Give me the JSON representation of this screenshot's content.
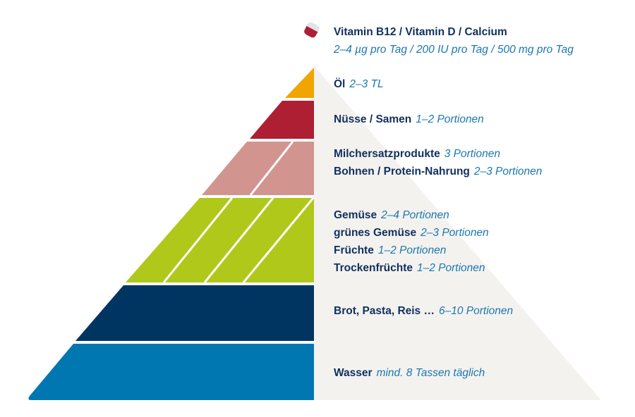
{
  "colors": {
    "background_half": "#f4f2ef",
    "oil": "#f0a500",
    "nuts": "#ae1f34",
    "protein": "#d2948f",
    "produce": "#b0c81a",
    "grains": "#003562",
    "water": "#0077b0",
    "text_dark": "#10305e",
    "text_accent": "#1a78b0"
  },
  "supplement": {
    "icon": "capsule-icon",
    "title": "Vitamin B12 / Vitamin D / Calcium",
    "amount": "2–4 µg pro Tag / 200 IU pro Tag / 500 mg pro Tag"
  },
  "levels": [
    {
      "id": "oil",
      "items": [
        {
          "name": "Öl",
          "amount": "2–3 TL"
        }
      ]
    },
    {
      "id": "nuts",
      "items": [
        {
          "name": "Nüsse / Samen",
          "amount": "1–2 Portionen"
        }
      ]
    },
    {
      "id": "protein",
      "items": [
        {
          "name": "Milchersatzprodukte",
          "amount": "3 Portionen"
        },
        {
          "name": "Bohnen / Protein-Nahrung",
          "amount": "2–3 Portionen"
        }
      ]
    },
    {
      "id": "produce",
      "items": [
        {
          "name": "Gemüse",
          "amount": "2–4 Portionen"
        },
        {
          "name": "grünes Gemüse",
          "amount": "2–3 Portionen"
        },
        {
          "name": "Früchte",
          "amount": "1–2 Portionen"
        },
        {
          "name": "Trockenfrüchte",
          "amount": "1–2 Portionen"
        }
      ]
    },
    {
      "id": "grains",
      "items": [
        {
          "name": "Brot, Pasta, Reis …",
          "amount": "6–10 Portionen"
        }
      ]
    },
    {
      "id": "water",
      "items": [
        {
          "name": "Wasser",
          "amount": "mind. 8 Tassen täglich"
        }
      ]
    }
  ]
}
